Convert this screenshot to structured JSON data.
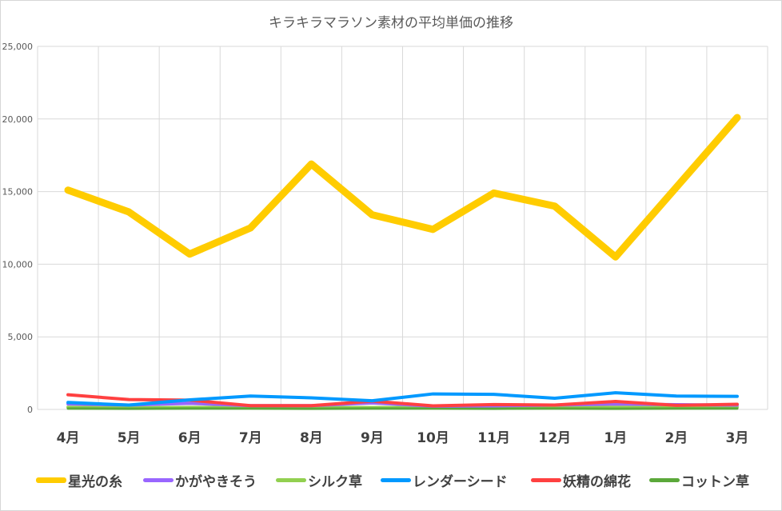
{
  "chart_data": {
    "type": "line",
    "title": "キラキラマラソン素材の平均単価の推移",
    "xlabel": "",
    "ylabel": "",
    "categories": [
      "4月",
      "5月",
      "6月",
      "7月",
      "8月",
      "9月",
      "10月",
      "11月",
      "12月",
      "1月",
      "2月",
      "3月"
    ],
    "ylim": [
      0,
      25000
    ],
    "yticks": [
      0,
      5000,
      10000,
      15000,
      20000,
      25000
    ],
    "ytick_labels": [
      "0",
      "5,000",
      "10,000",
      "15,000",
      "20,000",
      "25,000"
    ],
    "grid": true,
    "legend_position": "bottom",
    "series": [
      {
        "name": "星光の糸",
        "color": "#FFCC00",
        "values": [
          15100,
          13600,
          10700,
          12500,
          16900,
          13400,
          12400,
          14900,
          14000,
          10500,
          15300,
          20100
        ]
      },
      {
        "name": "かがやきそう",
        "color": "#9966FF",
        "values": [
          380,
          300,
          420,
          260,
          260,
          450,
          230,
          250,
          300,
          370,
          330,
          300
        ]
      },
      {
        "name": "シルク草",
        "color": "#92D050",
        "values": [
          150,
          120,
          140,
          140,
          130,
          130,
          140,
          160,
          150,
          150,
          140,
          150
        ]
      },
      {
        "name": "レンダーシード",
        "color": "#0099FF",
        "values": [
          480,
          300,
          660,
          920,
          800,
          600,
          1070,
          1040,
          770,
          1150,
          920,
          900
        ]
      },
      {
        "name": "妖精の綿花",
        "color": "#FF4040",
        "values": [
          1010,
          680,
          640,
          260,
          260,
          570,
          250,
          340,
          300,
          550,
          280,
          360
        ]
      },
      {
        "name": "コットン草",
        "color": "#5BA83A",
        "values": [
          60,
          50,
          60,
          60,
          50,
          60,
          60,
          50,
          60,
          50,
          60,
          60
        ]
      }
    ]
  }
}
